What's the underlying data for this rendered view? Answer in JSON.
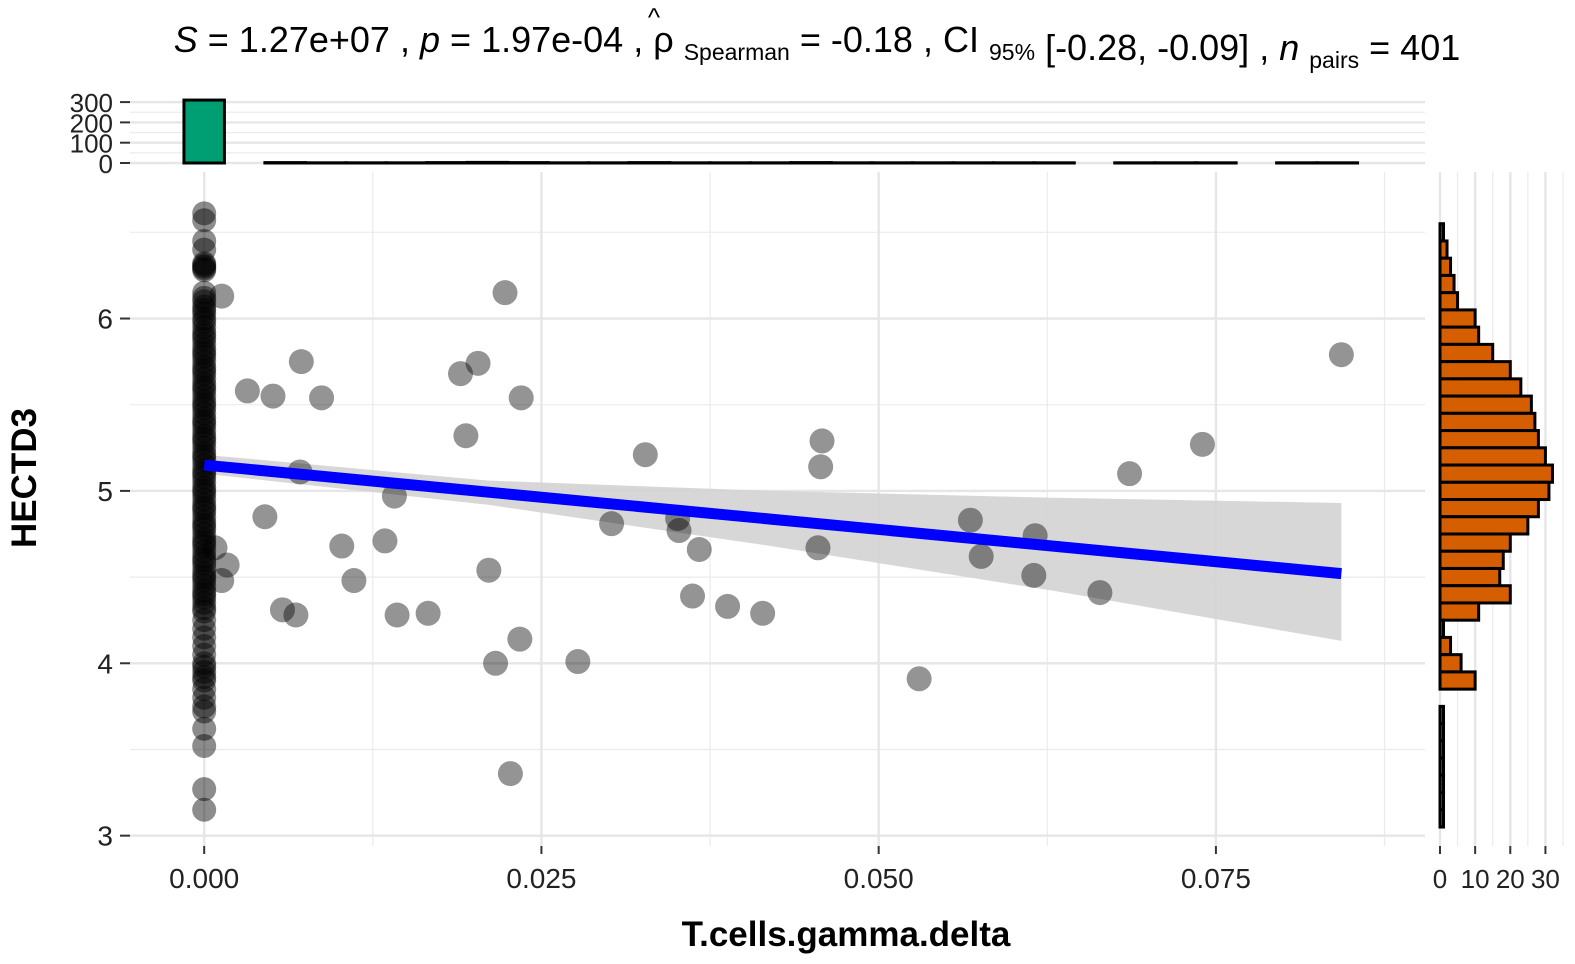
{
  "title": {
    "s_label": "S",
    "s_value": "1.27e+07",
    "p_label": "p",
    "p_value": "1.97e-04",
    "rho_symbol": "ρ",
    "rho_sub": "Spearman",
    "rho_value": "-0.18",
    "ci_label": "CI",
    "ci_sub": "95%",
    "ci_value": "[-0.28, -0.09]",
    "n_label": "n",
    "n_sub": "pairs",
    "n_value": "401"
  },
  "chart_data": {
    "type": "scatter",
    "xlabel": "T.cells.gamma.delta",
    "ylabel": "HECTD3",
    "xlim": [
      -0.0055,
      0.0905
    ],
    "ylim": [
      2.94,
      6.85
    ],
    "x_ticks": [
      {
        "v": 0.0,
        "label": "0.000"
      },
      {
        "v": 0.025,
        "label": "0.025"
      },
      {
        "v": 0.05,
        "label": "0.050"
      },
      {
        "v": 0.075,
        "label": "0.075"
      }
    ],
    "y_ticks": [
      {
        "v": 3,
        "label": "3"
      },
      {
        "v": 4,
        "label": "4"
      },
      {
        "v": 5,
        "label": "5"
      },
      {
        "v": 6,
        "label": "6"
      }
    ],
    "colors": {
      "points": "#000000",
      "line": "#0000ff",
      "ribbon": "#d3d3d3",
      "top_hist": "#009e73",
      "right_hist": "#d55e00"
    },
    "regression": {
      "x": [
        0.0,
        0.0843
      ],
      "y": [
        5.15,
        4.52
      ]
    },
    "ribbon": {
      "x": [
        0.0,
        0.021,
        0.042,
        0.063,
        0.0843
      ],
      "lower": [
        5.1,
        4.92,
        4.68,
        4.42,
        4.13
      ],
      "upper": [
        5.21,
        5.06,
        5.0,
        4.96,
        4.93
      ]
    },
    "points_zero": [
      6.61,
      6.57,
      6.45,
      6.4,
      6.32,
      6.31,
      6.3,
      6.29,
      6.28,
      6.15,
      6.12,
      6.1,
      6.07,
      6.05,
      6.03,
      6.0,
      5.98,
      5.95,
      5.92,
      5.9,
      5.88,
      5.85,
      5.82,
      5.8,
      5.78,
      5.75,
      5.72,
      5.7,
      5.68,
      5.65,
      5.62,
      5.6,
      5.58,
      5.55,
      5.52,
      5.5,
      5.48,
      5.45,
      5.42,
      5.4,
      5.38,
      5.35,
      5.32,
      5.3,
      5.28,
      5.25,
      5.22,
      5.2,
      5.18,
      5.15,
      5.12,
      5.1,
      5.08,
      5.05,
      5.02,
      5.0,
      4.98,
      4.95,
      4.92,
      4.9,
      4.88,
      4.85,
      4.82,
      4.8,
      4.78,
      4.75,
      4.72,
      4.7,
      4.68,
      4.65,
      4.62,
      4.6,
      4.58,
      4.55,
      4.52,
      4.5,
      4.48,
      4.45,
      4.42,
      4.4,
      4.38,
      4.35,
      4.32,
      4.3,
      4.25,
      4.2,
      4.15,
      4.1,
      4.05,
      4.0,
      3.98,
      3.95,
      3.92,
      3.9,
      3.85,
      3.8,
      3.75,
      3.72,
      3.62,
      3.52,
      3.27,
      3.15
    ],
    "points": [
      {
        "x": 0.0013,
        "y": 6.13
      },
      {
        "x": 0.0008,
        "y": 4.67
      },
      {
        "x": 0.0017,
        "y": 4.57
      },
      {
        "x": 0.0013,
        "y": 4.48
      },
      {
        "x": 0.0032,
        "y": 5.58
      },
      {
        "x": 0.0051,
        "y": 5.55
      },
      {
        "x": 0.0072,
        "y": 5.75
      },
      {
        "x": 0.0087,
        "y": 5.54
      },
      {
        "x": 0.0071,
        "y": 5.11
      },
      {
        "x": 0.0045,
        "y": 4.85
      },
      {
        "x": 0.0058,
        "y": 4.31
      },
      {
        "x": 0.0068,
        "y": 4.28
      },
      {
        "x": 0.0102,
        "y": 4.68
      },
      {
        "x": 0.0111,
        "y": 4.48
      },
      {
        "x": 0.0134,
        "y": 4.71
      },
      {
        "x": 0.0141,
        "y": 4.97
      },
      {
        "x": 0.0143,
        "y": 4.28
      },
      {
        "x": 0.0166,
        "y": 4.29
      },
      {
        "x": 0.019,
        "y": 5.68
      },
      {
        "x": 0.0203,
        "y": 5.74
      },
      {
        "x": 0.0194,
        "y": 5.32
      },
      {
        "x": 0.0223,
        "y": 6.15
      },
      {
        "x": 0.0235,
        "y": 5.54
      },
      {
        "x": 0.0211,
        "y": 4.54
      },
      {
        "x": 0.0216,
        "y": 4.0
      },
      {
        "x": 0.0234,
        "y": 4.14
      },
      {
        "x": 0.0227,
        "y": 3.36
      },
      {
        "x": 0.0277,
        "y": 4.01
      },
      {
        "x": 0.0302,
        "y": 4.81
      },
      {
        "x": 0.0327,
        "y": 5.21
      },
      {
        "x": 0.0351,
        "y": 4.84
      },
      {
        "x": 0.0352,
        "y": 4.77
      },
      {
        "x": 0.0367,
        "y": 4.66
      },
      {
        "x": 0.0362,
        "y": 4.39
      },
      {
        "x": 0.0388,
        "y": 4.33
      },
      {
        "x": 0.0414,
        "y": 4.29
      },
      {
        "x": 0.0455,
        "y": 4.67
      },
      {
        "x": 0.0457,
        "y": 5.14
      },
      {
        "x": 0.0458,
        "y": 5.29
      },
      {
        "x": 0.053,
        "y": 3.91
      },
      {
        "x": 0.0568,
        "y": 4.83
      },
      {
        "x": 0.0576,
        "y": 4.62
      },
      {
        "x": 0.0616,
        "y": 4.74
      },
      {
        "x": 0.0615,
        "y": 4.51
      },
      {
        "x": 0.0664,
        "y": 4.41
      },
      {
        "x": 0.0686,
        "y": 5.1
      },
      {
        "x": 0.074,
        "y": 5.27
      },
      {
        "x": 0.0843,
        "y": 5.79
      }
    ],
    "top_histogram": {
      "bin_width": 0.003,
      "first_bin_start": -0.0015,
      "counts": [
        310,
        0,
        2,
        1,
        1,
        1,
        2,
        3,
        2,
        1,
        1,
        2,
        1,
        1,
        1,
        2,
        1,
        1,
        1,
        1,
        1,
        1,
        0,
        1,
        1,
        1,
        0,
        1,
        1
      ],
      "ylim": [
        0,
        330
      ],
      "y_ticks": [
        {
          "v": 0,
          "label": "0"
        },
        {
          "v": 100,
          "label": "100"
        },
        {
          "v": 200,
          "label": "200"
        },
        {
          "v": 300,
          "label": "300"
        }
      ]
    },
    "right_histogram": {
      "bins": [
        {
          "y0": 6.45,
          "y1": 6.55,
          "n": 1
        },
        {
          "y0": 6.35,
          "y1": 6.45,
          "n": 2
        },
        {
          "y0": 6.25,
          "y1": 6.35,
          "n": 3
        },
        {
          "y0": 6.15,
          "y1": 6.25,
          "n": 4
        },
        {
          "y0": 6.05,
          "y1": 6.15,
          "n": 5
        },
        {
          "y0": 5.95,
          "y1": 6.05,
          "n": 10
        },
        {
          "y0": 5.85,
          "y1": 5.95,
          "n": 11
        },
        {
          "y0": 5.75,
          "y1": 5.85,
          "n": 15
        },
        {
          "y0": 5.65,
          "y1": 5.75,
          "n": 20
        },
        {
          "y0": 5.55,
          "y1": 5.65,
          "n": 23
        },
        {
          "y0": 5.45,
          "y1": 5.55,
          "n": 26
        },
        {
          "y0": 5.35,
          "y1": 5.45,
          "n": 27
        },
        {
          "y0": 5.25,
          "y1": 5.35,
          "n": 28
        },
        {
          "y0": 5.15,
          "y1": 5.25,
          "n": 30
        },
        {
          "y0": 5.05,
          "y1": 5.15,
          "n": 32
        },
        {
          "y0": 4.95,
          "y1": 5.05,
          "n": 31
        },
        {
          "y0": 4.85,
          "y1": 4.95,
          "n": 28
        },
        {
          "y0": 4.75,
          "y1": 4.85,
          "n": 25
        },
        {
          "y0": 4.65,
          "y1": 4.75,
          "n": 20
        },
        {
          "y0": 4.55,
          "y1": 4.65,
          "n": 18
        },
        {
          "y0": 4.45,
          "y1": 4.55,
          "n": 17
        },
        {
          "y0": 4.35,
          "y1": 4.45,
          "n": 20
        },
        {
          "y0": 4.25,
          "y1": 4.35,
          "n": 11
        },
        {
          "y0": 4.15,
          "y1": 4.25,
          "n": 1
        },
        {
          "y0": 4.05,
          "y1": 4.15,
          "n": 3
        },
        {
          "y0": 3.95,
          "y1": 4.05,
          "n": 6
        },
        {
          "y0": 3.85,
          "y1": 3.95,
          "n": 10
        },
        {
          "y0": 3.65,
          "y1": 3.75,
          "n": 1
        },
        {
          "y0": 3.55,
          "y1": 3.65,
          "n": 1
        },
        {
          "y0": 3.45,
          "y1": 3.55,
          "n": 1
        },
        {
          "y0": 3.35,
          "y1": 3.45,
          "n": 1
        },
        {
          "y0": 3.25,
          "y1": 3.35,
          "n": 1
        },
        {
          "y0": 3.15,
          "y1": 3.25,
          "n": 1
        },
        {
          "y0": 3.05,
          "y1": 3.15,
          "n": 1
        }
      ],
      "xlim": [
        0,
        35
      ],
      "x_ticks": [
        {
          "v": 0,
          "label": "0"
        },
        {
          "v": 10,
          "label": "10"
        },
        {
          "v": 20,
          "label": "20"
        },
        {
          "v": 30,
          "label": "30"
        }
      ]
    }
  }
}
